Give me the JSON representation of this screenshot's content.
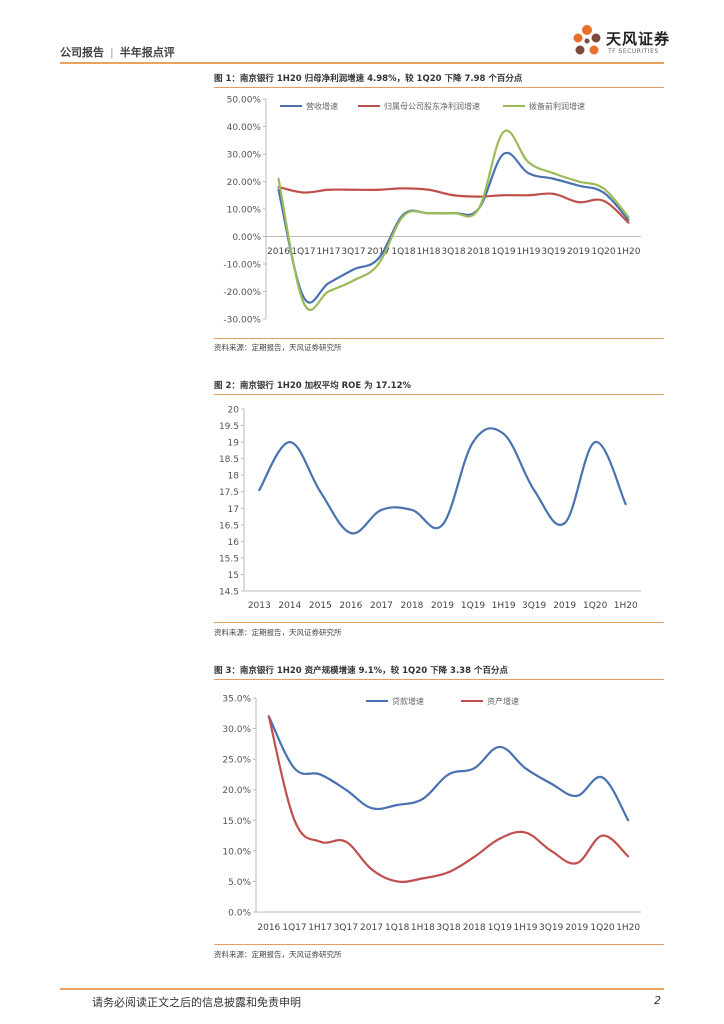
{
  "header": {
    "left_a": "公司报告",
    "left_b": "半年报点评",
    "separator": "|",
    "brand": "天风证券",
    "brand_sub": "TF SECURITIES"
  },
  "colors": {
    "blue": "#4a72b0",
    "red": "#c0504d",
    "green": "#9bbb59",
    "accent": "#e8a35c",
    "logo_orange": "#e8712a",
    "logo_dark": "#7a4a3a"
  },
  "footer": {
    "disclaimer": "请务必阅读正文之后的信息披露和免责申明",
    "page": "2"
  },
  "chart_data": [
    {
      "type": "line",
      "title": "图 1：南京银行 1H20 归母净利润增速 4.98%，较 1Q20 下降 7.98 个百分点",
      "source": "资料来源：定期报告，天风证券研究所",
      "categories": [
        "2016",
        "1Q17",
        "1H17",
        "3Q17",
        "2017",
        "1Q18",
        "1H18",
        "3Q18",
        "2018",
        "1Q19",
        "1H19",
        "3Q19",
        "2019",
        "1Q20",
        "1H20"
      ],
      "y_ticks": [
        "50.00%",
        "40.00%",
        "30.00%",
        "20.00%",
        "10.00%",
        "0.00%",
        "-10.00%",
        "-20.00%",
        "-30.00%"
      ],
      "ylim": [
        -30,
        50
      ],
      "legend_position": "top",
      "series": [
        {
          "name": "营收增速",
          "color": "#4a72b0",
          "values": [
            17,
            -22,
            -17,
            -12,
            -8,
            8,
            8.5,
            8.5,
            10,
            30,
            23,
            21,
            18.5,
            16,
            6
          ]
        },
        {
          "name": "归属母公司股东净利润增速",
          "color": "#c0504d",
          "values": [
            18,
            16,
            17,
            17,
            17,
            17.5,
            17,
            15,
            14.5,
            15,
            15,
            15.5,
            12.5,
            13,
            5
          ]
        },
        {
          "name": "拨备前利润增速",
          "color": "#9bbb59",
          "values": [
            21,
            -24,
            -20,
            -16,
            -10,
            7.5,
            8.5,
            8.5,
            10,
            38,
            27,
            23,
            20,
            17.5,
            7
          ]
        }
      ]
    },
    {
      "type": "line",
      "title": "图 2：南京银行 1H20 加权平均 ROE 为 17.12%",
      "source": "资料来源：定期报告，天风证券研究所",
      "categories": [
        "2013",
        "2014",
        "2015",
        "2016",
        "2017",
        "2018",
        "2019",
        "1Q19",
        "1H19",
        "3Q19",
        "2019",
        "1Q20",
        "1H20"
      ],
      "y_ticks": [
        "20",
        "19.5",
        "19",
        "18.5",
        "18",
        "17.5",
        "17",
        "16.5",
        "16",
        "15.5",
        "15",
        "14.5"
      ],
      "ylim": [
        14.5,
        20
      ],
      "series": [
        {
          "name": "加权平均ROE",
          "color": "#4a72b0",
          "values": [
            17.55,
            19.0,
            17.5,
            16.25,
            16.95,
            16.95,
            16.5,
            19.0,
            19.25,
            17.55,
            16.55,
            19.0,
            17.12
          ]
        }
      ]
    },
    {
      "type": "line",
      "title": "图 3：南京银行 1H20 资产规模增速 9.1%，较 1Q20 下降 3.38 个百分点",
      "source": "资料来源：定期报告，天风证券研究所",
      "categories": [
        "2016",
        "1Q17",
        "1H17",
        "3Q17",
        "2017",
        "1Q18",
        "1H18",
        "3Q18",
        "2018",
        "1Q19",
        "1H19",
        "3Q19",
        "2019",
        "1Q20",
        "1H20"
      ],
      "y_ticks": [
        "35.0%",
        "30.0%",
        "25.0%",
        "20.0%",
        "15.0%",
        "10.0%",
        "5.0%",
        "0.0%"
      ],
      "ylim": [
        0,
        35
      ],
      "legend_position": "top",
      "series": [
        {
          "name": "贷款增速",
          "color": "#4a72b0",
          "values": [
            32,
            23.5,
            22.5,
            20,
            17,
            17.5,
            18.5,
            22.5,
            23.5,
            27,
            23.5,
            21,
            19,
            22,
            15
          ]
        },
        {
          "name": "资产增速",
          "color": "#c0504d",
          "values": [
            32,
            15,
            11.5,
            11.5,
            7,
            5,
            5.5,
            6.5,
            9,
            12,
            13,
            10,
            8,
            12.5,
            9.1
          ]
        }
      ]
    }
  ]
}
